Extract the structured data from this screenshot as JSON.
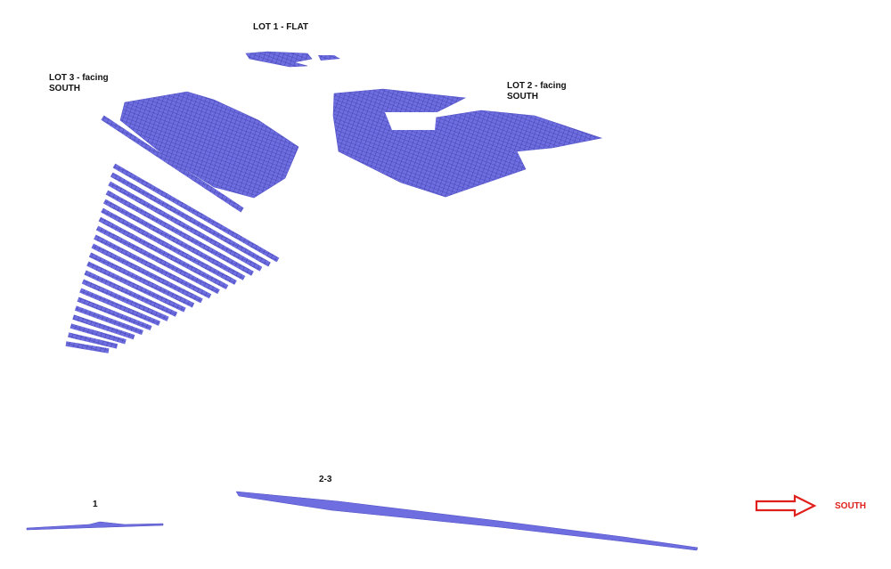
{
  "labels": {
    "lot1": "LOT 1 - FLAT",
    "lot3": [
      "LOT 3 - facing",
      "SOUTH"
    ],
    "lot2": [
      "LOT 2 - facing",
      "SOUTH"
    ],
    "profile1": "1",
    "profile23": "2-3",
    "direction": "SOUTH"
  }
}
